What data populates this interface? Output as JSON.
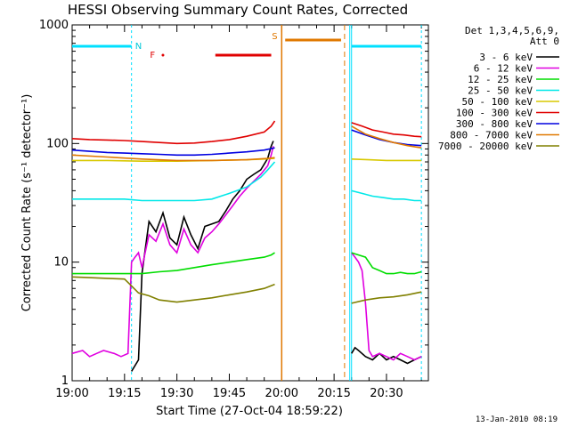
{
  "chart_data": {
    "type": "line",
    "title": "HESSI Observing Summary Count Rates, Corrected",
    "xlabel": "Start Time (27-Oct-04 18:59:22)",
    "ylabel": "Corrected Count Rate (s⁻¹ detector⁻¹)",
    "yscale": "log",
    "ylim": [
      1,
      1000
    ],
    "xlim_min": [
      0,
      102
    ],
    "x_tick_minutes": [
      0,
      15,
      30,
      45,
      60,
      75,
      90
    ],
    "x_tick_labels": [
      "19:00",
      "19:15",
      "19:30",
      "19:45",
      "20:00",
      "20:15",
      "20:30"
    ],
    "y_tick_values": [
      1,
      10,
      100,
      1000
    ],
    "y_tick_labels": [
      "1",
      "10",
      "100",
      "1000"
    ],
    "legend_header": [
      "Det 1,3,4,5,6,9,",
      "Att 0"
    ],
    "legend_position": "right",
    "timestamp": "13-Jan-2010 08:19",
    "flags": [
      {
        "label": "N",
        "color": "#00c8d8",
        "x_min": 19
      },
      {
        "label": "F",
        "color": "#e00000",
        "x_min": 23
      },
      {
        "label": "S",
        "color": "#e07800",
        "x_min": 58
      }
    ],
    "segments": {
      "night_bars": [
        [
          0,
          17
        ],
        [
          80,
          100
        ]
      ],
      "night_color": "#00e0ff",
      "flare_bar": [
        41,
        57
      ],
      "flare_dot": 26,
      "flare_color": "#e00000",
      "saa_bar": [
        61,
        77
      ],
      "saa_color": "#e07800"
    },
    "series": [
      {
        "name": "3 - 6 keV",
        "color": "#000000",
        "segments": [
          {
            "x": [
              17,
              19,
              20,
              22,
              24,
              26,
              28,
              30,
              32,
              34,
              36,
              38,
              40,
              42,
              44,
              46,
              48,
              50,
              52,
              54,
              56,
              57,
              57.6
            ],
            "y": [
              1.2,
              1.5,
              8,
              22,
              18,
              26,
              16,
              14,
              24,
              17,
              13,
              20,
              21,
              22,
              27,
              34,
              40,
              50,
              55,
              60,
              75,
              95,
              105
            ]
          },
          {
            "x": [
              80,
              81,
              82,
              84,
              86,
              88,
              90,
              92,
              94,
              96,
              98,
              100
            ],
            "y": [
              1.7,
              1.9,
              1.8,
              1.6,
              1.5,
              1.7,
              1.5,
              1.6,
              1.5,
              1.4,
              1.5,
              1.6
            ]
          }
        ]
      },
      {
        "name": "6 - 12 keV",
        "color": "#e000e0",
        "segments": [
          {
            "x": [
              0,
              3,
              5,
              7,
              9,
              12,
              14,
              16,
              17,
              18,
              19,
              20,
              22,
              24,
              26,
              28,
              30,
              32,
              34,
              36,
              38,
              40,
              42,
              44,
              46,
              48,
              50,
              52,
              54,
              56,
              57,
              57.6
            ],
            "y": [
              1.7,
              1.8,
              1.6,
              1.7,
              1.8,
              1.7,
              1.6,
              1.7,
              10,
              11,
              12,
              9,
              17,
              15,
              21,
              14,
              12,
              19,
              14,
              12,
              16,
              18,
              21,
              25,
              30,
              36,
              42,
              48,
              55,
              65,
              80,
              95
            ]
          },
          {
            "x": [
              80,
              81,
              82,
              83,
              84,
              85,
              86,
              88,
              90,
              92,
              94,
              96,
              98,
              100
            ],
            "y": [
              12,
              11,
              10,
              8.5,
              4.5,
              1.8,
              1.6,
              1.7,
              1.6,
              1.5,
              1.7,
              1.6,
              1.5,
              1.6
            ]
          }
        ]
      },
      {
        "name": "12 - 25 keV",
        "color": "#00dd00",
        "segments": [
          {
            "x": [
              0,
              5,
              10,
              15,
              20,
              25,
              30,
              35,
              40,
              45,
              50,
              55,
              57,
              58
            ],
            "y": [
              8,
              8,
              8,
              8,
              8,
              8.3,
              8.5,
              9,
              9.5,
              10,
              10.5,
              11,
              11.5,
              12
            ]
          },
          {
            "x": [
              80,
              82,
              84,
              86,
              88,
              90,
              92,
              94,
              96,
              98,
              100
            ],
            "y": [
              12,
              11.5,
              11,
              9,
              8.5,
              8,
              8,
              8.2,
              8,
              8,
              8.3
            ]
          }
        ]
      },
      {
        "name": "25 - 50 keV",
        "color": "#00e8e8",
        "segments": [
          {
            "x": [
              0,
              5,
              10,
              15,
              20,
              25,
              30,
              35,
              40,
              45,
              50,
              54,
              56,
              58
            ],
            "y": [
              34,
              34,
              34,
              34,
              33,
              33,
              33,
              33,
              34,
              38,
              43,
              52,
              60,
              70
            ]
          },
          {
            "x": [
              80,
              83,
              86,
              89,
              92,
              95,
              98,
              100
            ],
            "y": [
              40,
              38,
              36,
              35,
              34,
              34,
              33,
              33
            ]
          }
        ]
      },
      {
        "name": "50 - 100 keV",
        "color": "#d8c800",
        "segments": [
          {
            "x": [
              0,
              10,
              20,
              30,
              40,
              50,
              55,
              58
            ],
            "y": [
              72,
              72,
              71,
              71,
              72,
              73,
              74,
              75
            ]
          },
          {
            "x": [
              80,
              85,
              90,
              95,
              100
            ],
            "y": [
              74,
              73,
              72,
              72,
              72
            ]
          }
        ]
      },
      {
        "name": "100 - 300 keV",
        "color": "#e00000",
        "segments": [
          {
            "x": [
              0,
              5,
              10,
              15,
              20,
              25,
              30,
              35,
              40,
              45,
              50,
              55,
              57,
              58
            ],
            "y": [
              110,
              108,
              107,
              106,
              104,
              102,
              100,
              101,
              104,
              108,
              115,
              125,
              140,
              155
            ]
          },
          {
            "x": [
              80,
              83,
              86,
              89,
              92,
              95,
              98,
              100
            ],
            "y": [
              150,
              140,
              130,
              125,
              120,
              118,
              115,
              114
            ]
          }
        ]
      },
      {
        "name": "300 - 800 keV",
        "color": "#0000e0",
        "segments": [
          {
            "x": [
              0,
              5,
              10,
              15,
              20,
              25,
              30,
              35,
              40,
              45,
              50,
              55,
              58
            ],
            "y": [
              88,
              86,
              84,
              83,
              82,
              81,
              80,
              80,
              81,
              83,
              85,
              88,
              92
            ]
          },
          {
            "x": [
              80,
              84,
              88,
              92,
              96,
              100
            ],
            "y": [
              130,
              118,
              108,
              102,
              98,
              96
            ]
          }
        ]
      },
      {
        "name": "800 - 7000 keV",
        "color": "#e07800",
        "segments": [
          {
            "x": [
              0,
              10,
              20,
              30,
              40,
              50,
              56,
              58
            ],
            "y": [
              80,
              77,
              74,
              72,
              72,
              73,
              75,
              76
            ]
          },
          {
            "x": [
              80,
              84,
              88,
              92,
              96,
              100
            ],
            "y": [
              140,
              120,
              110,
              102,
              96,
              92
            ]
          }
        ]
      },
      {
        "name": "7000 - 20000 keV",
        "color": "#808000",
        "segments": [
          {
            "x": [
              0,
              5,
              10,
              15,
              17,
              19,
              22,
              25,
              30,
              35,
              40,
              45,
              50,
              55,
              58
            ],
            "y": [
              7.5,
              7.4,
              7.3,
              7.2,
              6.3,
              5.5,
              5.2,
              4.8,
              4.6,
              4.8,
              5,
              5.3,
              5.6,
              6,
              6.5
            ]
          },
          {
            "x": [
              80,
              84,
              88,
              92,
              96,
              100
            ],
            "y": [
              4.5,
              4.8,
              5,
              5.1,
              5.3,
              5.6
            ]
          }
        ]
      }
    ]
  }
}
